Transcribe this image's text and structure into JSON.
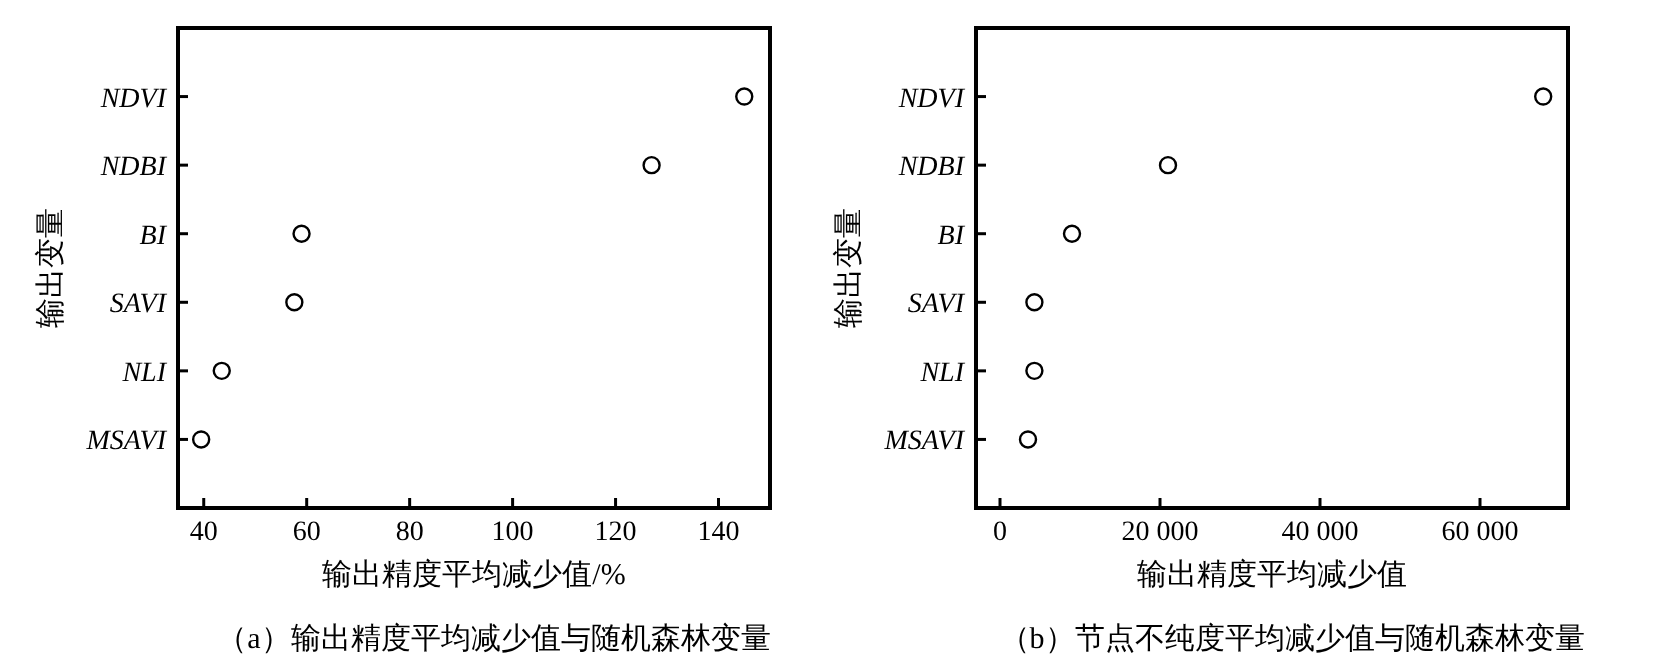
{
  "chart_data": [
    {
      "type": "scatter",
      "title": "（a）输出精度平均减少值与随机森林变量",
      "xlabel": "输出精度平均减少值/%",
      "ylabel": "输出变量",
      "categories": [
        "NDVI",
        "NDBI",
        "BI",
        "SAVI",
        "NLI",
        "MSAVI"
      ],
      "orientation": "horizontal",
      "marker": "circle",
      "grid": false,
      "xlim": [
        35,
        150
      ],
      "xticks": [
        40,
        60,
        80,
        100,
        120,
        140
      ],
      "series": [
        {
          "color": "#000000",
          "values": [
            145,
            127,
            59,
            57.6,
            43.5,
            39.5
          ]
        }
      ]
    },
    {
      "type": "scatter",
      "title": "（b）节点不纯度平均减少值与随机森林变量",
      "xlabel": "输出精度平均减少值",
      "ylabel": "输出变量",
      "categories": [
        "NDVI",
        "NDBI",
        "BI",
        "SAVI",
        "NLI",
        "MSAVI"
      ],
      "orientation": "horizontal",
      "marker": "circle",
      "grid": false,
      "xlim": [
        -3000,
        71000
      ],
      "xticks": [
        0,
        {
          "value": 20000,
          "label": "20 000"
        },
        {
          "value": 40000,
          "label": "40 000"
        },
        {
          "value": 60000,
          "label": "60 000"
        }
      ],
      "series": [
        {
          "color": "#000000",
          "values": [
            67900,
            21000,
            9000,
            4300,
            4300,
            3500
          ]
        }
      ]
    }
  ]
}
